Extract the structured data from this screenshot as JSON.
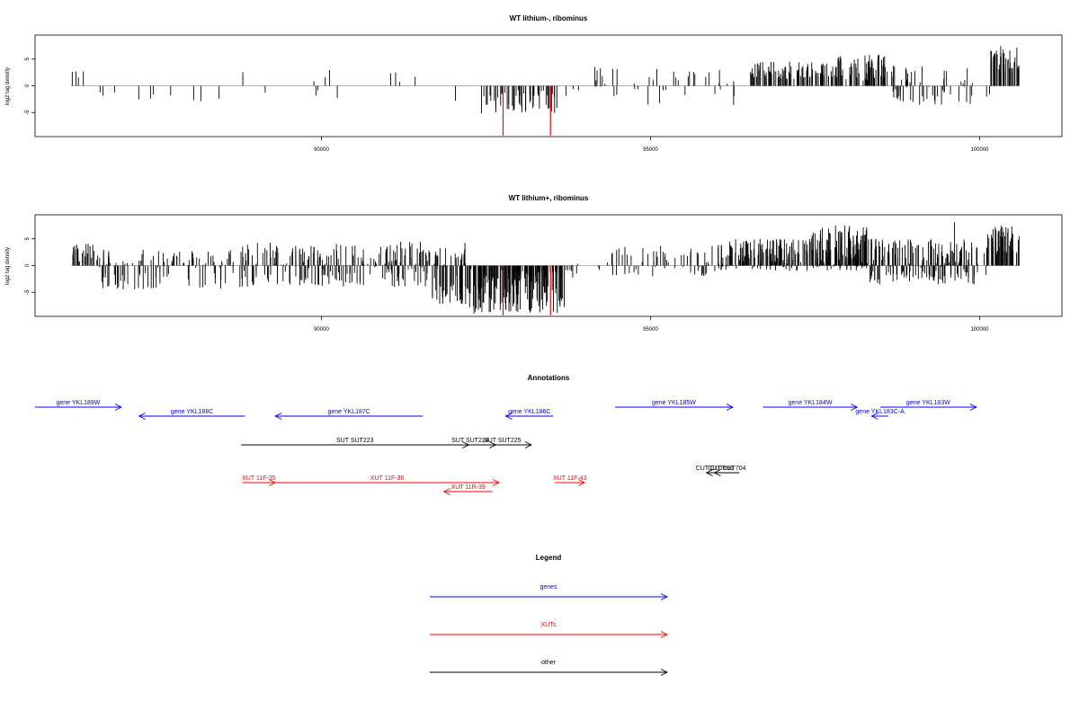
{
  "chart_data": [
    {
      "type": "bar",
      "title": "WT lithium-, ribominus",
      "ylabel": "log2 tag density",
      "xlabel": "",
      "xlim": [
        85650,
        101250
      ],
      "ylim": [
        -9.5,
        9.5
      ],
      "x_ticks": [
        90000,
        95000,
        100000
      ],
      "y_ticks": [
        5,
        0,
        -5
      ],
      "seed": 7,
      "segments": [
        {
          "start": 86200,
          "end": 86500,
          "n": 4,
          "min": 1.5,
          "max": 2.8
        },
        {
          "start": 86500,
          "end": 88500,
          "n": 10,
          "min": -3.8,
          "max": -1.2
        },
        {
          "start": 88800,
          "end": 88850,
          "n": 1,
          "min": 2.4,
          "max": 2.7
        },
        {
          "start": 89100,
          "end": 89200,
          "n": 2,
          "min": -1.5,
          "max": 0.8
        },
        {
          "start": 89700,
          "end": 90400,
          "n": 6,
          "min": -2.8,
          "max": 3.4
        },
        {
          "start": 90900,
          "end": 91500,
          "n": 4,
          "min": 0.4,
          "max": 2.5
        },
        {
          "start": 92000,
          "end": 92200,
          "n": 3,
          "min": -2.8,
          "max": 3.0
        },
        {
          "start": 92400,
          "end": 93600,
          "n": 55,
          "min": -5.2,
          "max": -0.8
        },
        {
          "start": 93600,
          "end": 94000,
          "n": 5,
          "min": -2.5,
          "max": 0.6
        },
        {
          "start": 94150,
          "end": 94800,
          "n": 14,
          "min": -2.0,
          "max": 3.6
        },
        {
          "start": 94800,
          "end": 96300,
          "n": 26,
          "min": -3.6,
          "max": 3.6
        },
        {
          "start": 96500,
          "end": 97800,
          "n": 90,
          "min": 1.2,
          "max": 4.6
        },
        {
          "start": 97800,
          "end": 98600,
          "n": 60,
          "min": 1.0,
          "max": 5.8
        },
        {
          "start": 98650,
          "end": 99900,
          "n": 55,
          "min": -3.8,
          "max": 4.0
        },
        {
          "start": 100050,
          "end": 100150,
          "n": 2,
          "min": -2.5,
          "max": -1.0
        },
        {
          "start": 100150,
          "end": 100600,
          "n": 45,
          "min": 2.5,
          "max": 7.6
        }
      ],
      "highlights": [
        {
          "x": 92760,
          "value": -9.3,
          "color": "#ff0000"
        },
        {
          "x": 93480,
          "value": -9.3,
          "color": "#ff0000"
        }
      ]
    },
    {
      "type": "bar",
      "title": "WT lithium+, ribominus",
      "ylabel": "log2 tag density",
      "xlabel": "",
      "xlim": [
        85650,
        101250
      ],
      "ylim": [
        -9.5,
        9.5
      ],
      "x_ticks": [
        90000,
        95000,
        100000
      ],
      "y_ticks": [
        5,
        0,
        -5
      ],
      "seed": 23,
      "segments": [
        {
          "start": 86200,
          "end": 86600,
          "n": 30,
          "min": 0.5,
          "max": 4.3
        },
        {
          "start": 86600,
          "end": 88800,
          "n": 120,
          "min": -4.5,
          "max": 3.0
        },
        {
          "start": 88800,
          "end": 90800,
          "n": 140,
          "min": -4.0,
          "max": 4.3
        },
        {
          "start": 90800,
          "end": 91600,
          "n": 70,
          "min": -4.0,
          "max": 4.5
        },
        {
          "start": 91600,
          "end": 92200,
          "n": 70,
          "min": -7.2,
          "max": 4.3
        },
        {
          "start": 92200,
          "end": 93700,
          "n": 180,
          "min": -9.0,
          "max": -0.5
        },
        {
          "start": 93700,
          "end": 93900,
          "n": 8,
          "min": -2.5,
          "max": 0.5
        },
        {
          "start": 94200,
          "end": 94400,
          "n": 4,
          "min": -2.0,
          "max": 0.8
        },
        {
          "start": 94400,
          "end": 96000,
          "n": 60,
          "min": -2.0,
          "max": 3.8
        },
        {
          "start": 96000,
          "end": 97400,
          "n": 160,
          "min": -1.0,
          "max": 5.0
        },
        {
          "start": 97400,
          "end": 98300,
          "n": 140,
          "min": -1.0,
          "max": 7.6
        },
        {
          "start": 98300,
          "end": 100100,
          "n": 180,
          "min": -3.6,
          "max": 5.0
        },
        {
          "start": 99600,
          "end": 99650,
          "n": 1,
          "min": 8.0,
          "max": 8.2
        },
        {
          "start": 100100,
          "end": 100600,
          "n": 50,
          "min": 2.0,
          "max": 7.6
        }
      ],
      "highlights": [
        {
          "x": 92760,
          "value": -9.3,
          "color": "#ff0000"
        },
        {
          "x": 93480,
          "value": -9.3,
          "color": "#ff0000"
        }
      ]
    }
  ],
  "annotations": {
    "title": "Annotations",
    "items": [
      {
        "label": "gene YKL189W",
        "start": 85650,
        "end": 86960,
        "dir": 1,
        "color": "#0000ff",
        "track": 0
      },
      {
        "label": "gene YKL188C",
        "start": 87230,
        "end": 88840,
        "dir": -1,
        "color": "#0000ff",
        "track": 1
      },
      {
        "label": "gene YKL187C",
        "start": 89300,
        "end": 91540,
        "dir": -1,
        "color": "#0000ff",
        "track": 1
      },
      {
        "label": "gene YKL186C",
        "start": 92800,
        "end": 93520,
        "dir": -1,
        "color": "#0000ff",
        "track": 1
      },
      {
        "label": "gene YKL185W",
        "start": 94460,
        "end": 96250,
        "dir": 1,
        "color": "#0000ff",
        "track": 0
      },
      {
        "label": "gene YKL184W",
        "start": 96710,
        "end": 98140,
        "dir": 1,
        "color": "#0000ff",
        "track": 0
      },
      {
        "label": "gene YKL183C-A",
        "start": 98360,
        "end": 98610,
        "dir": -1,
        "color": "#0000ff",
        "track": 1
      },
      {
        "label": "gene YKL183W",
        "start": 98490,
        "end": 99950,
        "dir": 1,
        "color": "#0000ff",
        "track": 0
      },
      {
        "label": "SUT SUT223",
        "start": 88780,
        "end": 92240,
        "dir": 1,
        "color": "#000000",
        "track": 2
      },
      {
        "label": "SUT SUT224",
        "start": 91870,
        "end": 92650,
        "dir": 1,
        "color": "#000000",
        "track": 2
      },
      {
        "label": "SUT SUT225",
        "start": 92310,
        "end": 93190,
        "dir": 1,
        "color": "#000000",
        "track": 2
      },
      {
        "label": "CUT CUT691",
        "start": 95850,
        "end": 96100,
        "dir": -1,
        "color": "#000000",
        "track": 3
      },
      {
        "label": "CUT CUT704",
        "start": 95970,
        "end": 96350,
        "dir": -1,
        "color": "#000000",
        "track": 3
      },
      {
        "label": "XUT 11F-35",
        "start": 88800,
        "end": 89300,
        "dir": 1,
        "color": "#ff0000",
        "track": 4
      },
      {
        "label": "XUT 11F-36",
        "start": 89300,
        "end": 92700,
        "dir": 1,
        "color": "#ff0000",
        "track": 4
      },
      {
        "label": "XUT 11R-39",
        "start": 91860,
        "end": 92600,
        "dir": -1,
        "color": "#ff0000",
        "track": 5
      },
      {
        "label": "XUT 11F-43",
        "start": 93550,
        "end": 94000,
        "dir": 1,
        "color": "#ff0000",
        "track": 4
      }
    ]
  },
  "legend": {
    "title": "Legend",
    "items": [
      {
        "label": "genes",
        "color": "#0000ff"
      },
      {
        "label": "XUTs",
        "color": "#ff0000"
      },
      {
        "label": "other",
        "color": "#000000"
      }
    ]
  }
}
